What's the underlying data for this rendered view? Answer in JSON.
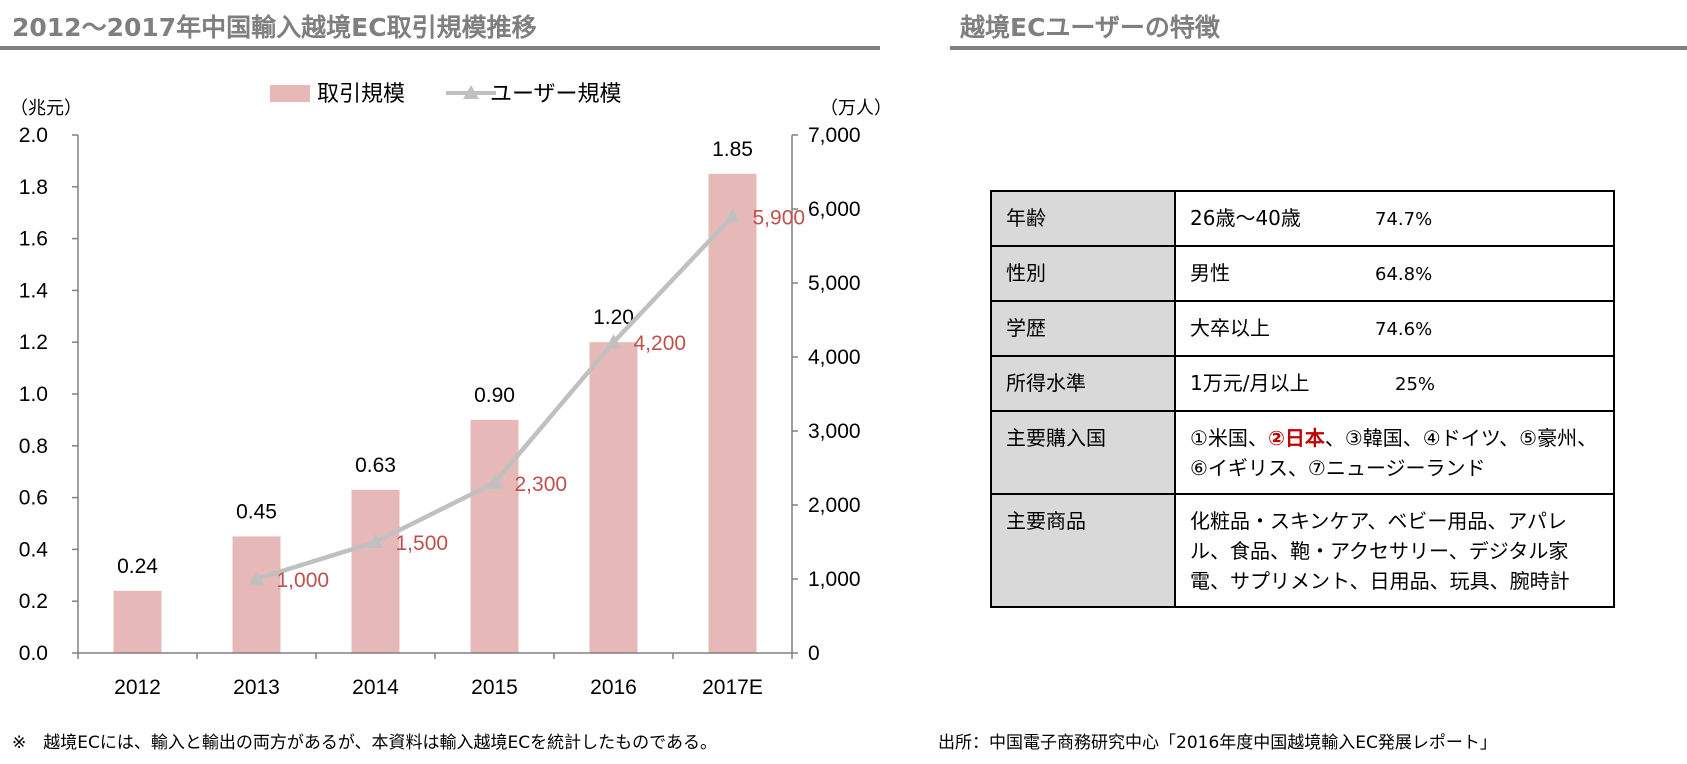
{
  "left_title": "2012～2017年中国輸入越境EC取引規模推移",
  "right_title": "越境ECユーザーの特徴",
  "chart_data": {
    "type": "bar",
    "categories": [
      "2012",
      "2013",
      "2014",
      "2015",
      "2016",
      "2017E"
    ],
    "series": [
      {
        "name": "取引規模",
        "type": "bar",
        "axis": "left",
        "values": [
          0.24,
          0.45,
          0.63,
          0.9,
          1.2,
          1.85
        ],
        "labels": [
          "0.24",
          "0.45",
          "0.63",
          "0.90",
          "1.20",
          "1.85"
        ]
      },
      {
        "name": "ユーザー規模",
        "type": "line",
        "axis": "right",
        "values": [
          null,
          1000,
          1500,
          2300,
          4200,
          5900
        ],
        "labels": [
          "",
          "1,000",
          "1,500",
          "2,300",
          "4,200",
          "5,900"
        ]
      }
    ],
    "y_left": {
      "unit": "（兆元）",
      "ylim": [
        0,
        2.0
      ],
      "ticks": [
        "0.0",
        "0.2",
        "0.4",
        "0.6",
        "0.8",
        "1.0",
        "1.2",
        "1.4",
        "1.6",
        "1.8",
        "2.0"
      ]
    },
    "y_right": {
      "unit": "（万人）",
      "ylim": [
        0,
        7000
      ],
      "ticks": [
        "0",
        "1,000",
        "2,000",
        "3,000",
        "4,000",
        "5,000",
        "6,000",
        "7,000"
      ]
    },
    "legend_position": "top",
    "grid": false,
    "colors": {
      "bar": "#e6b9b8",
      "line": "#c0c0c0",
      "line_label": "#c0504d"
    }
  },
  "traits_table": [
    {
      "label": "年齢",
      "value": "26歳～40歳",
      "pct": "74.7%"
    },
    {
      "label": "性別",
      "value": "男性",
      "pct": "64.8%"
    },
    {
      "label": "学歴",
      "value": "大卒以上",
      "pct": "74.6%"
    },
    {
      "label": "所得水準",
      "value": "1万元/月以上",
      "pct": "25%"
    },
    {
      "label": "主要購入国",
      "value_before": "①米国、",
      "value_highlight": "②日本",
      "value_after": "、③韓国、④ドイツ、⑤豪州、⑥イギリス、⑦ニュージーランド"
    },
    {
      "label": "主要商品",
      "value": "化粧品・スキンケア、ベビー用品、アパレル、食品、鞄・アクセサリー、デジタル家電、サプリメント、日用品、玩具、腕時計"
    }
  ],
  "footnote_left": "※　越境ECには、輸入と輸出の両方があるが、本資料は輸入越境ECを統計したものである。",
  "footnote_right": "出所：中国電子商務研究中心「2016年度中国越境輸入EC発展レポート」"
}
